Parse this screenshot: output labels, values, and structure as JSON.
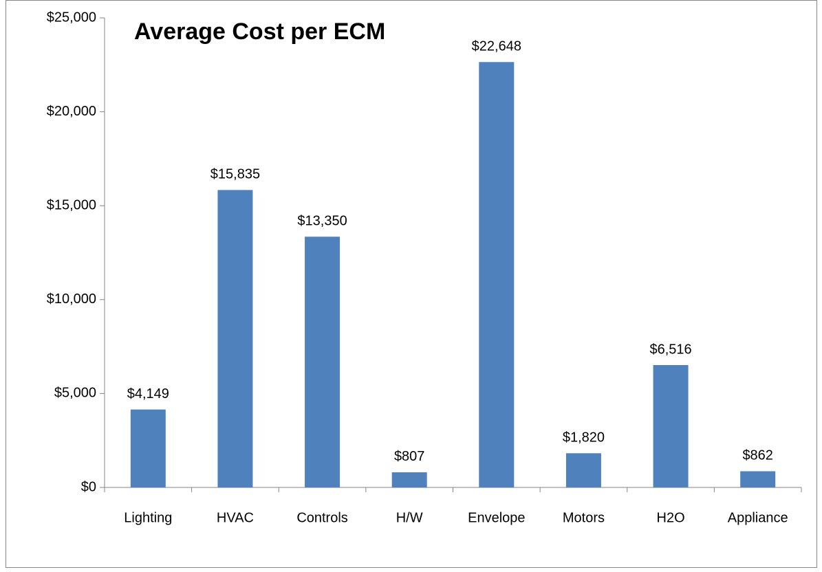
{
  "chart_data": {
    "type": "bar",
    "title": "Average Cost per ECM",
    "categories": [
      "Lighting",
      "HVAC",
      "Controls",
      "H/W",
      "Envelope",
      "Motors",
      "H2O",
      "Appliance"
    ],
    "values": [
      4149,
      15835,
      13350,
      807,
      22648,
      1820,
      6516,
      862
    ],
    "value_labels": [
      "$4,149",
      "$15,835",
      "$13,350",
      "$807",
      "$22,648",
      "$1,820",
      "$6,516",
      "$862"
    ],
    "color": "#4f81bd",
    "ylim": [
      0,
      25000
    ],
    "yticks": [
      {
        "value": 0,
        "label": "$0"
      },
      {
        "value": 5000,
        "label": "$5,000"
      },
      {
        "value": 10000,
        "label": "$10,000"
      },
      {
        "value": 15000,
        "label": "$15,000"
      },
      {
        "value": 20000,
        "label": "$20,000"
      },
      {
        "value": 25000,
        "label": "$25,000"
      }
    ],
    "grid": false
  }
}
